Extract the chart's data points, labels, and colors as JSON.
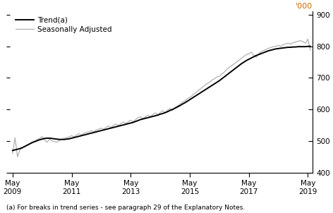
{
  "ylabel_right": "'000",
  "ylim": [
    400,
    910
  ],
  "yticks": [
    400,
    500,
    600,
    700,
    800,
    900
  ],
  "footnote": "(a) For breaks in trend series - see paragraph 29 of the Explanatory Notes.",
  "legend": [
    "Trend(a)",
    "Seasonally Adjusted"
  ],
  "trend_color": "#000000",
  "seasonal_color": "#b0b0b0",
  "background_color": "#ffffff",
  "xtick_labels": [
    "May\n2009",
    "May\n2011",
    "May\n2013",
    "May\n2015",
    "May\n2017",
    "May\n2019"
  ],
  "xtick_positions": [
    0,
    24,
    48,
    72,
    96,
    120
  ],
  "xlim": [
    -1,
    122
  ],
  "trend_data": [
    470,
    472,
    474,
    476,
    479,
    483,
    487,
    491,
    495,
    498,
    501,
    504,
    506,
    508,
    509,
    509,
    508,
    507,
    506,
    505,
    505,
    505,
    506,
    507,
    509,
    511,
    513,
    515,
    517,
    519,
    521,
    523,
    525,
    527,
    529,
    531,
    533,
    535,
    537,
    539,
    541,
    543,
    545,
    547,
    549,
    551,
    553,
    555,
    557,
    559,
    562,
    565,
    568,
    570,
    572,
    574,
    576,
    578,
    580,
    582,
    585,
    587,
    590,
    593,
    597,
    600,
    604,
    608,
    612,
    617,
    621,
    626,
    631,
    636,
    641,
    646,
    651,
    656,
    661,
    666,
    671,
    676,
    681,
    686,
    691,
    697,
    703,
    709,
    715,
    721,
    727,
    733,
    739,
    745,
    750,
    755,
    759,
    763,
    767,
    771,
    774,
    777,
    780,
    783,
    786,
    788,
    790,
    792,
    793,
    794,
    795,
    796,
    797,
    797,
    798,
    798,
    799,
    799,
    799,
    799,
    800,
    800
  ],
  "seasonal_data": [
    460,
    510,
    450,
    472,
    478,
    483,
    487,
    492,
    497,
    500,
    505,
    508,
    514,
    504,
    496,
    506,
    500,
    498,
    496,
    502,
    505,
    508,
    511,
    513,
    517,
    513,
    519,
    523,
    519,
    525,
    527,
    529,
    533,
    529,
    535,
    537,
    541,
    537,
    543,
    548,
    543,
    549,
    554,
    549,
    555,
    560,
    555,
    561,
    566,
    561,
    568,
    574,
    577,
    571,
    577,
    582,
    577,
    584,
    589,
    583,
    590,
    596,
    589,
    598,
    603,
    597,
    606,
    611,
    617,
    623,
    627,
    634,
    638,
    644,
    651,
    657,
    663,
    670,
    676,
    682,
    686,
    693,
    697,
    703,
    705,
    712,
    718,
    727,
    733,
    739,
    744,
    750,
    756,
    762,
    768,
    774,
    776,
    782,
    772,
    765,
    776,
    783,
    787,
    790,
    794,
    796,
    799,
    800,
    803,
    800,
    806,
    808,
    810,
    807,
    812,
    814,
    816,
    818,
    815,
    810,
    823,
    788
  ]
}
